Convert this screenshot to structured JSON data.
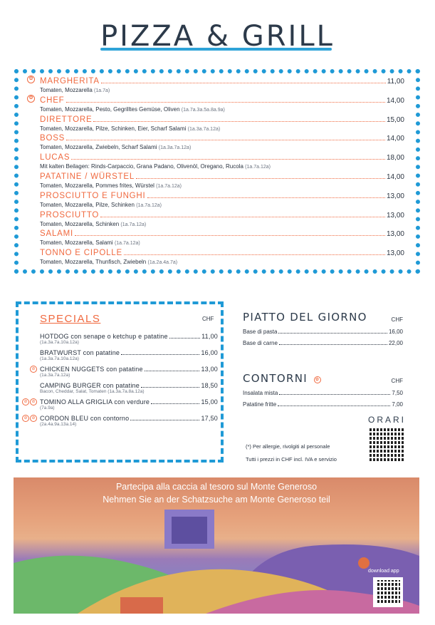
{
  "title": "PIZZA & GRILL",
  "pizzas": [
    {
      "name": "MARGHERITA",
      "price": "11,00",
      "desc": "Tomaten, Mozzarella",
      "allergens": "(1a.7a)",
      "icon": "vegetarian-icon"
    },
    {
      "name": "CHEF",
      "price": "14,00",
      "desc": "Tomaten, Mozzarella, Pesto, Gegrilltes Gemüse, Oliven",
      "allergens": "(1a.7a.3a.5a.8a.9a)",
      "icon": "vegetarian-icon"
    },
    {
      "name": "DIRETTORE",
      "price": "15,00",
      "desc": "Tomaten, Mozzarella, Pilze, Schinken, Eier, Scharf Salami",
      "allergens": "(1a.3a.7a.12a)"
    },
    {
      "name": "BOSS",
      "price": "14,00",
      "desc": "Tomaten, Mozzarella, Zwiebeln, Scharf Salami",
      "allergens": "(1a.3a.7a.12a)"
    },
    {
      "name": "LUCAS",
      "price": "18,00",
      "desc": "Mit kalten Beilagen: Rinds-Carpaccio, Grana Padano, Olivenöl, Oregano, Rucola",
      "allergens": "(1a.7a.12a)"
    },
    {
      "name": "PATATINE / WÜRSTEL",
      "price": "14,00",
      "desc": "Tomaten, Mozzarella, Pommes frites, Würstel",
      "allergens": "(1a.7a.12a)"
    },
    {
      "name": "PROSCIUTTO E FUNGHI",
      "price": "13,00",
      "desc": "Tomaten, Mozzarella, Pilze, Schinken",
      "allergens": "(1a.7a.12a)"
    },
    {
      "name": "PROSCIUTTO",
      "price": "13,00",
      "desc": "Tomaten, Mozzarella, Schinken",
      "allergens": "(1a.7a.12a)"
    },
    {
      "name": "SALAMI",
      "price": "13,00",
      "desc": "Tomaten, Mozzarella, Salami",
      "allergens": "(1a.7a.12a)"
    },
    {
      "name": "TONNO E CIPOLLE",
      "price": "13,00",
      "desc": "Tomaten, Mozzarella, Thunfisch, Zwiebeln",
      "allergens": "(1a.2a.4a.7a)"
    }
  ],
  "specials": {
    "title": "SPECIALS",
    "currency": "CHF",
    "items": [
      {
        "name": "HOTDOG  con senape o ketchup e patatine",
        "price": "11,00",
        "sub": "(1a.3a.7a.10a.12a)",
        "icons": 0
      },
      {
        "name": "BRATWURST con patatine",
        "price": "16,00",
        "sub": "(1a.3a.7a.10a.12a)",
        "icons": 0
      },
      {
        "name": "CHICKEN NUGGETS con patatine",
        "price": "13,00",
        "sub": "(1a.3a.7a.12a)",
        "icons": 1
      },
      {
        "name": "CAMPING BURGER con patatine",
        "price": "18,50",
        "sub": "Bacon, Cheddar, Salat, Tomaten (1a.3a.7a.8a.12a)",
        "icons": 0
      },
      {
        "name": "TOMINO ALLA GRIGLIA con verdure",
        "price": "15,00",
        "sub": "(7a.9a)",
        "icons": 2
      },
      {
        "name": "CORDON BLEU con contorno",
        "price": "17,50",
        "sub": "(2a.4a.9a.13a.14)",
        "icons": 2
      }
    ]
  },
  "piatto": {
    "title": "PIATTO DEL GIORNO",
    "currency": "CHF",
    "items": [
      {
        "name": "Base di pasta",
        "price": "16,00"
      },
      {
        "name": "Base di carne",
        "price": "22,00"
      }
    ]
  },
  "contorni": {
    "title": "CONTORNI",
    "currency": "CHF",
    "items": [
      {
        "name": "Insalata mista",
        "price": "7,50"
      },
      {
        "name": "Patatine fritte",
        "price": "7,00"
      }
    ]
  },
  "orari": "ORARI",
  "notes": [
    "(*) Per allergie, rivolgiti al personale",
    "Tutti i prezzi in CHF incl. IVA e servizio"
  ],
  "banner": {
    "line1": "Partecipa alla caccia al tesoro sul Monte Generoso",
    "line2": "Nehmen Sie an der Schatzsuche am Monte Generoso teil",
    "download": "download app"
  },
  "colors": {
    "accent": "#f0693f",
    "border": "#1f9ad6",
    "text": "#2a3340"
  }
}
